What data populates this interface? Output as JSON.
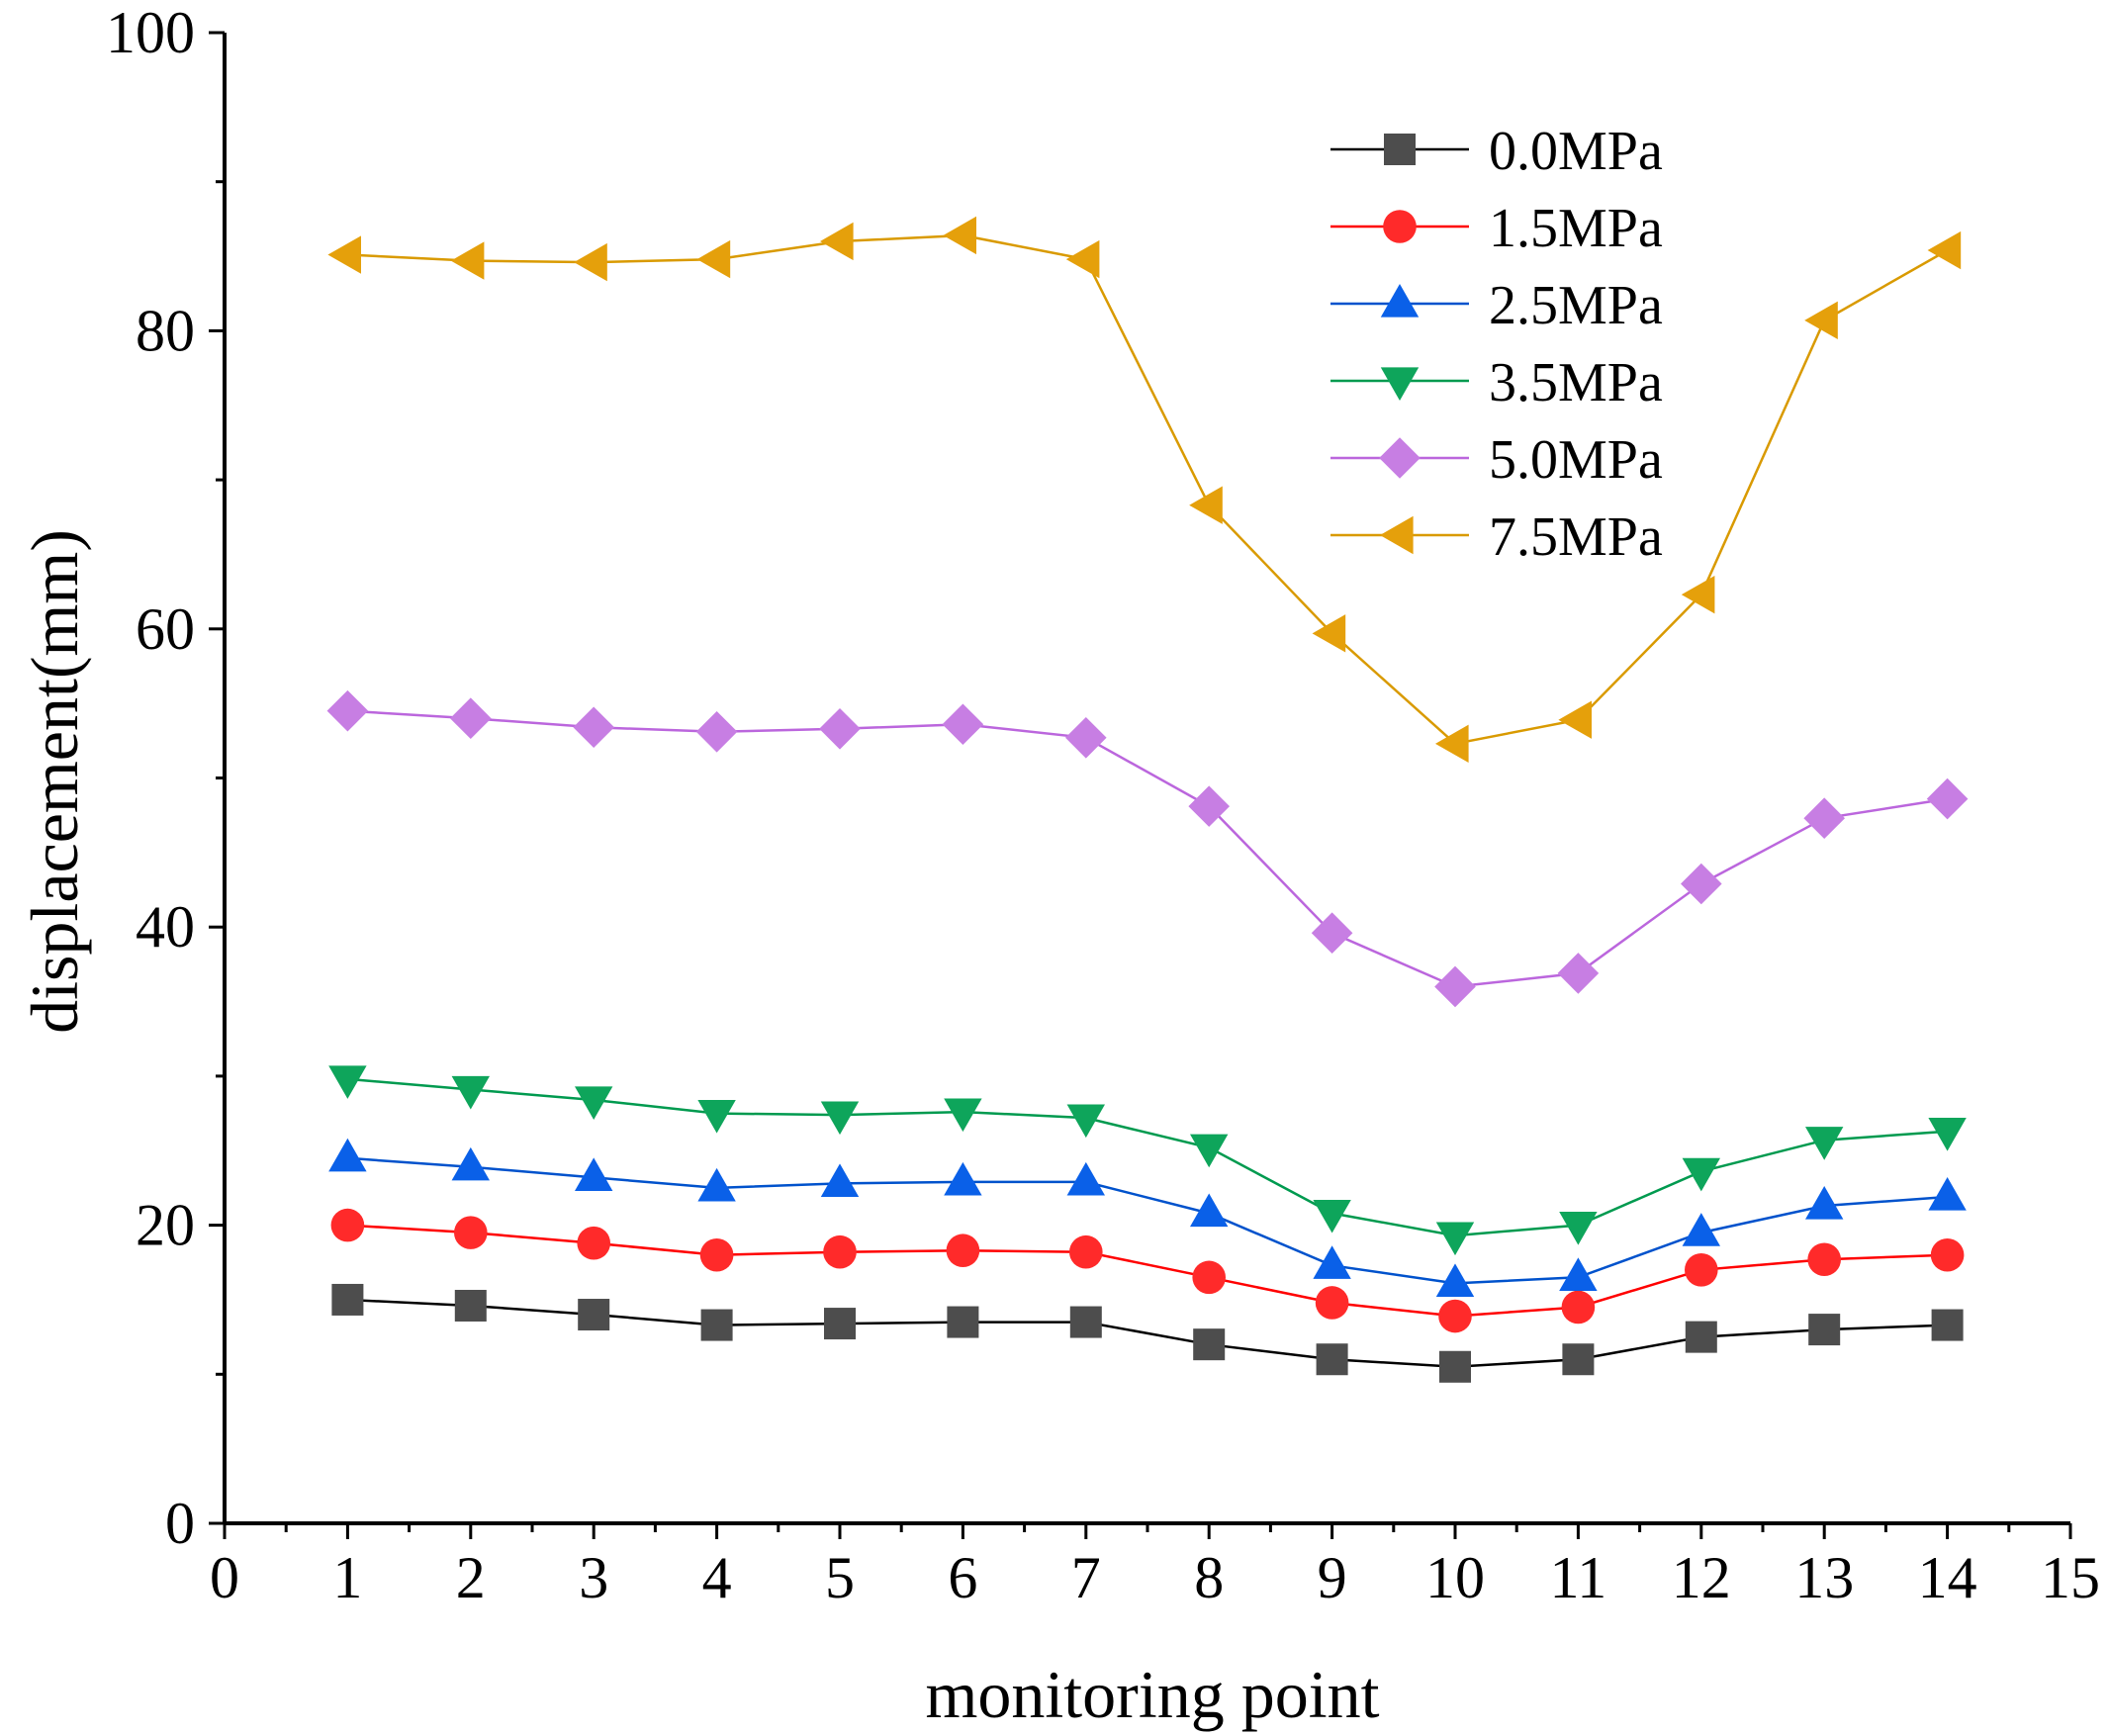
{
  "chart_data": {
    "type": "line",
    "title": "",
    "xlabel": "monitoring point",
    "ylabel": "displacement(mm)",
    "xlim": [
      0,
      15
    ],
    "ylim": [
      0,
      100
    ],
    "xticks": [
      0,
      1,
      2,
      3,
      4,
      5,
      6,
      7,
      8,
      9,
      10,
      11,
      12,
      13,
      14,
      15
    ],
    "yticks": [
      0,
      20,
      40,
      60,
      80,
      100
    ],
    "grid": false,
    "legend_position": "top-right",
    "x": [
      1,
      2,
      3,
      4,
      5,
      6,
      7,
      8,
      9,
      10,
      11,
      12,
      13,
      14
    ],
    "series": [
      {
        "name": "0.0MPa",
        "marker": "square",
        "color": "#4d4d4d",
        "line_color": "#000000",
        "values": [
          15.0,
          14.6,
          14.0,
          13.3,
          13.4,
          13.5,
          13.5,
          12.0,
          11.0,
          10.5,
          11.0,
          12.5,
          13.0,
          13.3
        ]
      },
      {
        "name": "1.5MPa",
        "marker": "circle",
        "color": "#ff2a2a",
        "line_color": "#ff0000",
        "values": [
          20.0,
          19.5,
          18.8,
          18.0,
          18.2,
          18.3,
          18.2,
          16.5,
          14.8,
          13.9,
          14.5,
          17.0,
          17.7,
          18.0
        ]
      },
      {
        "name": "2.5MPa",
        "marker": "triangle-up",
        "color": "#0a60e8",
        "line_color": "#0052cc",
        "values": [
          24.5,
          23.9,
          23.2,
          22.5,
          22.8,
          22.9,
          22.9,
          20.8,
          17.3,
          16.1,
          16.5,
          19.5,
          21.3,
          21.9
        ]
      },
      {
        "name": "3.5MPa",
        "marker": "triangle-down",
        "color": "#0ea55b",
        "line_color": "#009a4f",
        "values": [
          29.8,
          29.1,
          28.4,
          27.5,
          27.4,
          27.6,
          27.2,
          25.2,
          20.8,
          19.3,
          20.0,
          23.6,
          25.7,
          26.3
        ]
      },
      {
        "name": "5.0MPa",
        "marker": "diamond",
        "color": "#c77ee3",
        "line_color": "#bb66dd",
        "values": [
          54.5,
          54.0,
          53.4,
          53.1,
          53.3,
          53.6,
          52.7,
          48.1,
          39.6,
          36.0,
          36.9,
          42.9,
          47.3,
          48.6
        ]
      },
      {
        "name": "7.5MPa",
        "marker": "triangle-left",
        "color": "#e5a00b",
        "line_color": "#d99a00",
        "values": [
          85.1,
          84.7,
          84.6,
          84.8,
          86.0,
          86.4,
          84.8,
          68.3,
          59.7,
          52.3,
          53.9,
          62.3,
          80.7,
          85.4
        ]
      }
    ]
  }
}
